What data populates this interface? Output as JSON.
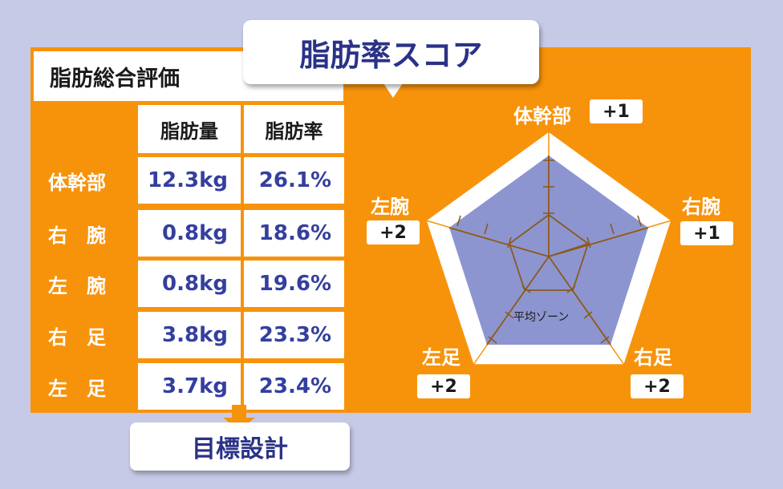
{
  "score_title": "脂肪率スコア",
  "summary": {
    "title": "脂肪総合評価",
    "headers": {
      "mass": "脂肪量",
      "rate": "脂肪率"
    },
    "rows": [
      {
        "label": "体幹部",
        "mass": "12.3kg",
        "rate": "26.1%"
      },
      {
        "label": "右　腕",
        "mass": "0.8kg",
        "rate": "18.6%"
      },
      {
        "label": "左　腕",
        "mass": "0.8kg",
        "rate": "19.6%"
      },
      {
        "label": "右　足",
        "mass": "3.8kg",
        "rate": "23.3%"
      },
      {
        "label": "左　足",
        "mass": "3.7kg",
        "rate": "23.4%"
      }
    ]
  },
  "radar": {
    "zone_label": "平均ゾーン",
    "axes": [
      {
        "label": "体幹部",
        "score": "+1"
      },
      {
        "label": "右腕",
        "score": "+1"
      },
      {
        "label": "右足",
        "score": "+2"
      },
      {
        "label": "左足",
        "score": "+2"
      },
      {
        "label": "左腕",
        "score": "+2"
      }
    ]
  },
  "design_button": "目標設計",
  "colors": {
    "background": "#c7cae6",
    "accent": "#f7930b",
    "navy": "#2a3287",
    "value_blue": "#343f9e",
    "radar_fill": "#8c95cf",
    "radar_lines": "#8a5a1e"
  }
}
